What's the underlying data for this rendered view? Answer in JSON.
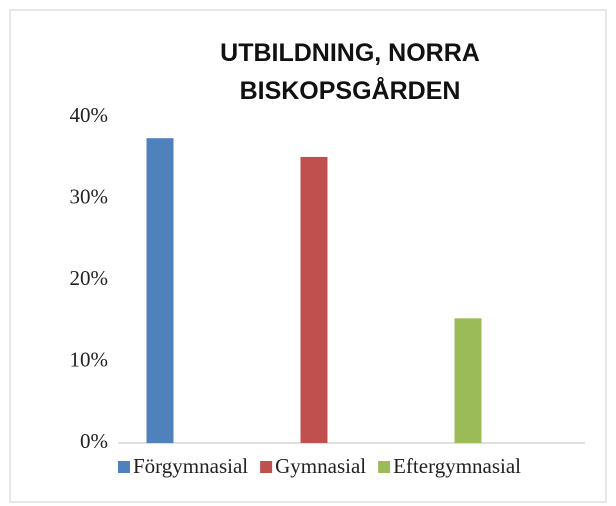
{
  "chart_data": {
    "type": "bar",
    "title": "UTBILDNING, NORRA BISKOPSGÅRDEN",
    "categories": [
      "Förgymnasial",
      "Gymnasial",
      "Eftergymnasial"
    ],
    "values": [
      37.4,
      35.1,
      15.3
    ],
    "colors": [
      "#4f81bd",
      "#c0504d",
      "#9bbb59"
    ],
    "ylim": [
      0,
      40
    ],
    "yticks": [
      {
        "value": 0,
        "label": "0%"
      },
      {
        "value": 10,
        "label": "10%"
      },
      {
        "value": 20,
        "label": "20%"
      },
      {
        "value": 30,
        "label": "30%"
      },
      {
        "value": 40,
        "label": "40%"
      }
    ],
    "grid": false,
    "legend": "bottom"
  }
}
